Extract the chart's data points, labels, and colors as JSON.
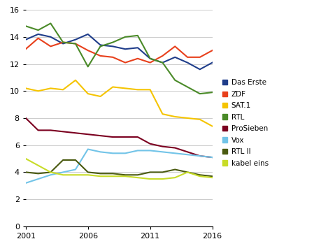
{
  "years": [
    2001,
    2002,
    2003,
    2004,
    2005,
    2006,
    2007,
    2008,
    2009,
    2010,
    2011,
    2012,
    2013,
    2014,
    2015,
    2016
  ],
  "Das Erste": [
    13.8,
    14.2,
    14.0,
    13.5,
    13.8,
    14.2,
    13.4,
    13.3,
    13.1,
    13.2,
    12.4,
    12.1,
    12.5,
    12.1,
    11.6,
    12.1
  ],
  "ZDF": [
    13.1,
    13.9,
    13.3,
    13.6,
    13.5,
    13.0,
    12.6,
    12.5,
    12.1,
    12.4,
    12.1,
    12.6,
    13.3,
    12.5,
    12.5,
    13.0
  ],
  "SAT.1": [
    10.2,
    10.0,
    10.2,
    10.1,
    10.8,
    9.8,
    9.6,
    10.3,
    10.2,
    10.1,
    10.1,
    8.3,
    8.1,
    8.0,
    7.9,
    7.4
  ],
  "RTL": [
    14.8,
    14.5,
    15.0,
    13.6,
    13.5,
    11.8,
    13.3,
    13.6,
    14.0,
    14.1,
    12.4,
    12.1,
    10.8,
    10.3,
    9.8,
    9.9
  ],
  "ProSieben": [
    8.0,
    7.1,
    7.1,
    7.0,
    6.9,
    6.8,
    6.7,
    6.6,
    6.6,
    6.6,
    6.1,
    5.9,
    5.8,
    5.5,
    5.2,
    5.1
  ],
  "Vox": [
    3.2,
    3.5,
    3.8,
    4.0,
    4.2,
    5.7,
    5.5,
    5.4,
    5.4,
    5.6,
    5.6,
    5.5,
    5.4,
    5.3,
    5.2,
    5.1
  ],
  "RTL II": [
    4.0,
    3.9,
    4.0,
    4.9,
    4.9,
    4.0,
    3.9,
    3.9,
    3.8,
    3.8,
    4.0,
    4.0,
    4.2,
    4.0,
    3.8,
    3.7
  ],
  "kabel eins": [
    5.0,
    4.5,
    4.0,
    3.8,
    3.8,
    3.8,
    3.7,
    3.7,
    3.7,
    3.6,
    3.5,
    3.5,
    3.6,
    4.0,
    3.7,
    3.6
  ],
  "colors": {
    "Das Erste": "#1f3d8a",
    "ZDF": "#e8401c",
    "SAT.1": "#f5c400",
    "RTL": "#4a8a28",
    "ProSieben": "#7b0020",
    "Vox": "#72c4e8",
    "RTL II": "#4a5a10",
    "kabel eins": "#c8dc28"
  },
  "ylim": [
    0,
    16
  ],
  "yticks": [
    0,
    2,
    4,
    6,
    8,
    10,
    12,
    14,
    16
  ],
  "xticks": [
    2001,
    2006,
    2011,
    2016
  ],
  "background_color": "#ffffff",
  "grid_color": "#cccccc",
  "figsize": [
    4.6,
    3.52
  ],
  "dpi": 100
}
